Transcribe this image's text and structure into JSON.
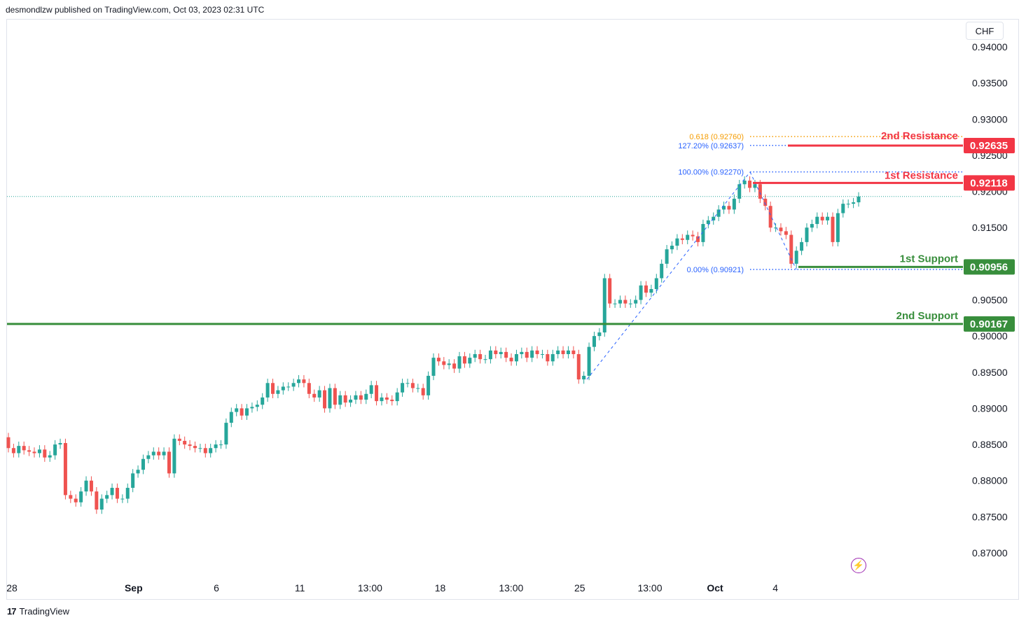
{
  "header": {
    "publisher_line": "desmondlzw published on TradingView.com, Oct 03, 2023 02:31 UTC"
  },
  "footer": {
    "brand": "TradingView",
    "logo_text": "17"
  },
  "currency_button": {
    "label": "CHF"
  },
  "colors": {
    "up": "#26a69a",
    "down": "#ef5350",
    "resistance": "#f23645",
    "support": "#388e3c",
    "fib_blue": "#2962ff",
    "fib_orange": "#f59c00",
    "grid_text": "#131722"
  },
  "icons": {
    "bolt": "lightning-icon"
  },
  "chart_data": {
    "type": "candlestick",
    "symbol_currency": "CHF",
    "y_ticks": [
      "0.94000",
      "0.93500",
      "0.93000",
      "0.92500",
      "0.92000",
      "0.91500",
      "0.91000",
      "0.90500",
      "0.90000",
      "0.89500",
      "0.89000",
      "0.88500",
      "0.88000",
      "0.87500",
      "0.87000"
    ],
    "x_ticks": [
      {
        "label": "28",
        "pos": 0.0
      },
      {
        "label": "Sep",
        "pos": 0.1385
      },
      {
        "label": "6",
        "pos": 0.2327
      },
      {
        "label": "11",
        "pos": 0.3276
      },
      {
        "label": "13:00",
        "pos": 0.4075
      },
      {
        "label": "18",
        "pos": 0.4873
      },
      {
        "label": "13:00",
        "pos": 0.568
      },
      {
        "label": "25",
        "pos": 0.646
      },
      {
        "label": "13:00",
        "pos": 0.7259
      },
      {
        "label": "Oct",
        "pos": 0.8
      },
      {
        "label": "4",
        "pos": 0.8686
      }
    ],
    "ylim": [
      0.865,
      0.944
    ],
    "levels": [
      {
        "name": "2nd Resistance",
        "value": "0.92635",
        "type": "resistance"
      },
      {
        "name": "1st Resistance",
        "value": "0.92118",
        "type": "resistance"
      },
      {
        "name": "1st Support",
        "value": "0.90956",
        "type": "support"
      },
      {
        "name": "2nd Support",
        "value": "0.90167",
        "type": "support"
      }
    ],
    "fib_labels": [
      {
        "label": "0.618 (0.92760)",
        "value": 0.9276,
        "color": "orange"
      },
      {
        "label": "127.20% (0.92637)",
        "value": 0.92637,
        "color": "blue"
      },
      {
        "label": "100.00% (0.92270)",
        "value": 0.9227,
        "color": "blue"
      },
      {
        "label": "0.00% (0.90921)",
        "value": 0.90921,
        "color": "blue"
      }
    ],
    "current_price": 0.9193,
    "closes": [
      0.8845,
      0.8838,
      0.8848,
      0.8842,
      0.884,
      0.8838,
      0.8843,
      0.8832,
      0.8835,
      0.885,
      0.8852,
      0.878,
      0.8775,
      0.877,
      0.8785,
      0.88,
      0.8785,
      0.876,
      0.8775,
      0.878,
      0.879,
      0.8775,
      0.8775,
      0.879,
      0.881,
      0.8815,
      0.883,
      0.8835,
      0.884,
      0.8835,
      0.884,
      0.881,
      0.8858,
      0.8855,
      0.885,
      0.8848,
      0.8845,
      0.8845,
      0.8838,
      0.8845,
      0.885,
      0.885,
      0.888,
      0.8895,
      0.89,
      0.889,
      0.89,
      0.8902,
      0.8905,
      0.8915,
      0.8935,
      0.892,
      0.8925,
      0.893,
      0.893,
      0.8935,
      0.894,
      0.8935,
      0.892,
      0.8915,
      0.8925,
      0.89,
      0.8928,
      0.8905,
      0.8918,
      0.8908,
      0.8912,
      0.8918,
      0.8912,
      0.892,
      0.8932,
      0.891,
      0.8915,
      0.8912,
      0.891,
      0.8922,
      0.8935,
      0.8935,
      0.8928,
      0.8928,
      0.8918,
      0.8945,
      0.897,
      0.8965,
      0.896,
      0.8962,
      0.8955,
      0.8972,
      0.8962,
      0.897,
      0.8975,
      0.8968,
      0.8968,
      0.898,
      0.8975,
      0.8978,
      0.897,
      0.8965,
      0.8975,
      0.8978,
      0.897,
      0.898,
      0.8975,
      0.8975,
      0.8965,
      0.8975,
      0.898,
      0.8975,
      0.898,
      0.8975,
      0.894,
      0.8945,
      0.8985,
      0.9,
      0.9005,
      0.908,
      0.9045,
      0.9045,
      0.905,
      0.9045,
      0.9045,
      0.905,
      0.907,
      0.906,
      0.9065,
      0.908,
      0.91,
      0.912,
      0.9125,
      0.9135,
      0.9133,
      0.914,
      0.9138,
      0.913,
      0.9155,
      0.916,
      0.9165,
      0.9175,
      0.918,
      0.9175,
      0.919,
      0.921,
      0.9215,
      0.9205,
      0.921,
      0.919,
      0.918,
      0.915,
      0.915,
      0.9145,
      0.914,
      0.91,
      0.9118,
      0.913,
      0.915,
      0.9155,
      0.9165,
      0.916,
      0.9165,
      0.913,
      0.917,
      0.9183,
      0.9183,
      0.9185,
      0.9193
    ]
  }
}
